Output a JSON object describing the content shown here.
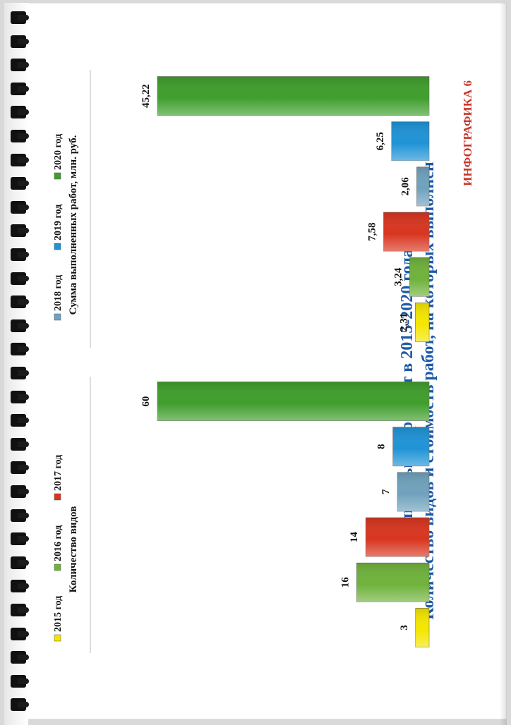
{
  "infographic_label": "ИНФОГРАФИКА 6",
  "title_line1": "Количество видов и стоимость работ, на которых выполнен",
  "title_line2": "капитальный ремонт в 2015-2020 годах",
  "colors": {
    "2015 год": "#f4e600",
    "2016 год": "#6fb23b",
    "2017 год": "#d8351f",
    "2018 год": "#6fa2bd",
    "2019 год": "#1f93d6",
    "2020 год": "#3f9e2c",
    "title": "#1d5aa8",
    "label": "#c8372c"
  },
  "chart_data": [
    {
      "type": "bar",
      "xlabel": "Количество видов",
      "legend": [
        {
          "name": "2015 год",
          "color": "#f4e600"
        },
        {
          "name": "2016 год",
          "color": "#6fb23b"
        },
        {
          "name": "2017 год",
          "color": "#d8351f"
        }
      ],
      "bars": [
        {
          "name": "2015 год",
          "value": 3,
          "label": "3"
        },
        {
          "name": "2016 год",
          "value": 16,
          "label": "16"
        },
        {
          "name": "2017 год",
          "value": 14,
          "label": "14"
        },
        {
          "name": "2018 год",
          "value": 7,
          "label": "7"
        },
        {
          "name": "2019 год",
          "value": 8,
          "label": "8"
        },
        {
          "name": "2020 год",
          "value": 60,
          "label": "60"
        }
      ]
    },
    {
      "type": "bar",
      "xlabel": "Сумма выполненных работ, млн. руб.",
      "legend": [
        {
          "name": "2018 год",
          "color": "#6fa2bd"
        },
        {
          "name": "2019 год",
          "color": "#1f93d6"
        },
        {
          "name": "2020 год",
          "color": "#3f9e2c"
        }
      ],
      "bars": [
        {
          "name": "2015 год",
          "value": 2.31,
          "label": "2,31"
        },
        {
          "name": "2016 год",
          "value": 3.24,
          "label": "3,24"
        },
        {
          "name": "2017 год",
          "value": 7.58,
          "label": "7,58"
        },
        {
          "name": "2018 год",
          "value": 2.06,
          "label": "2,06"
        },
        {
          "name": "2019 год",
          "value": 6.25,
          "label": "6,25"
        },
        {
          "name": "2020 год",
          "value": 45.22,
          "label": "45,22"
        }
      ]
    }
  ]
}
